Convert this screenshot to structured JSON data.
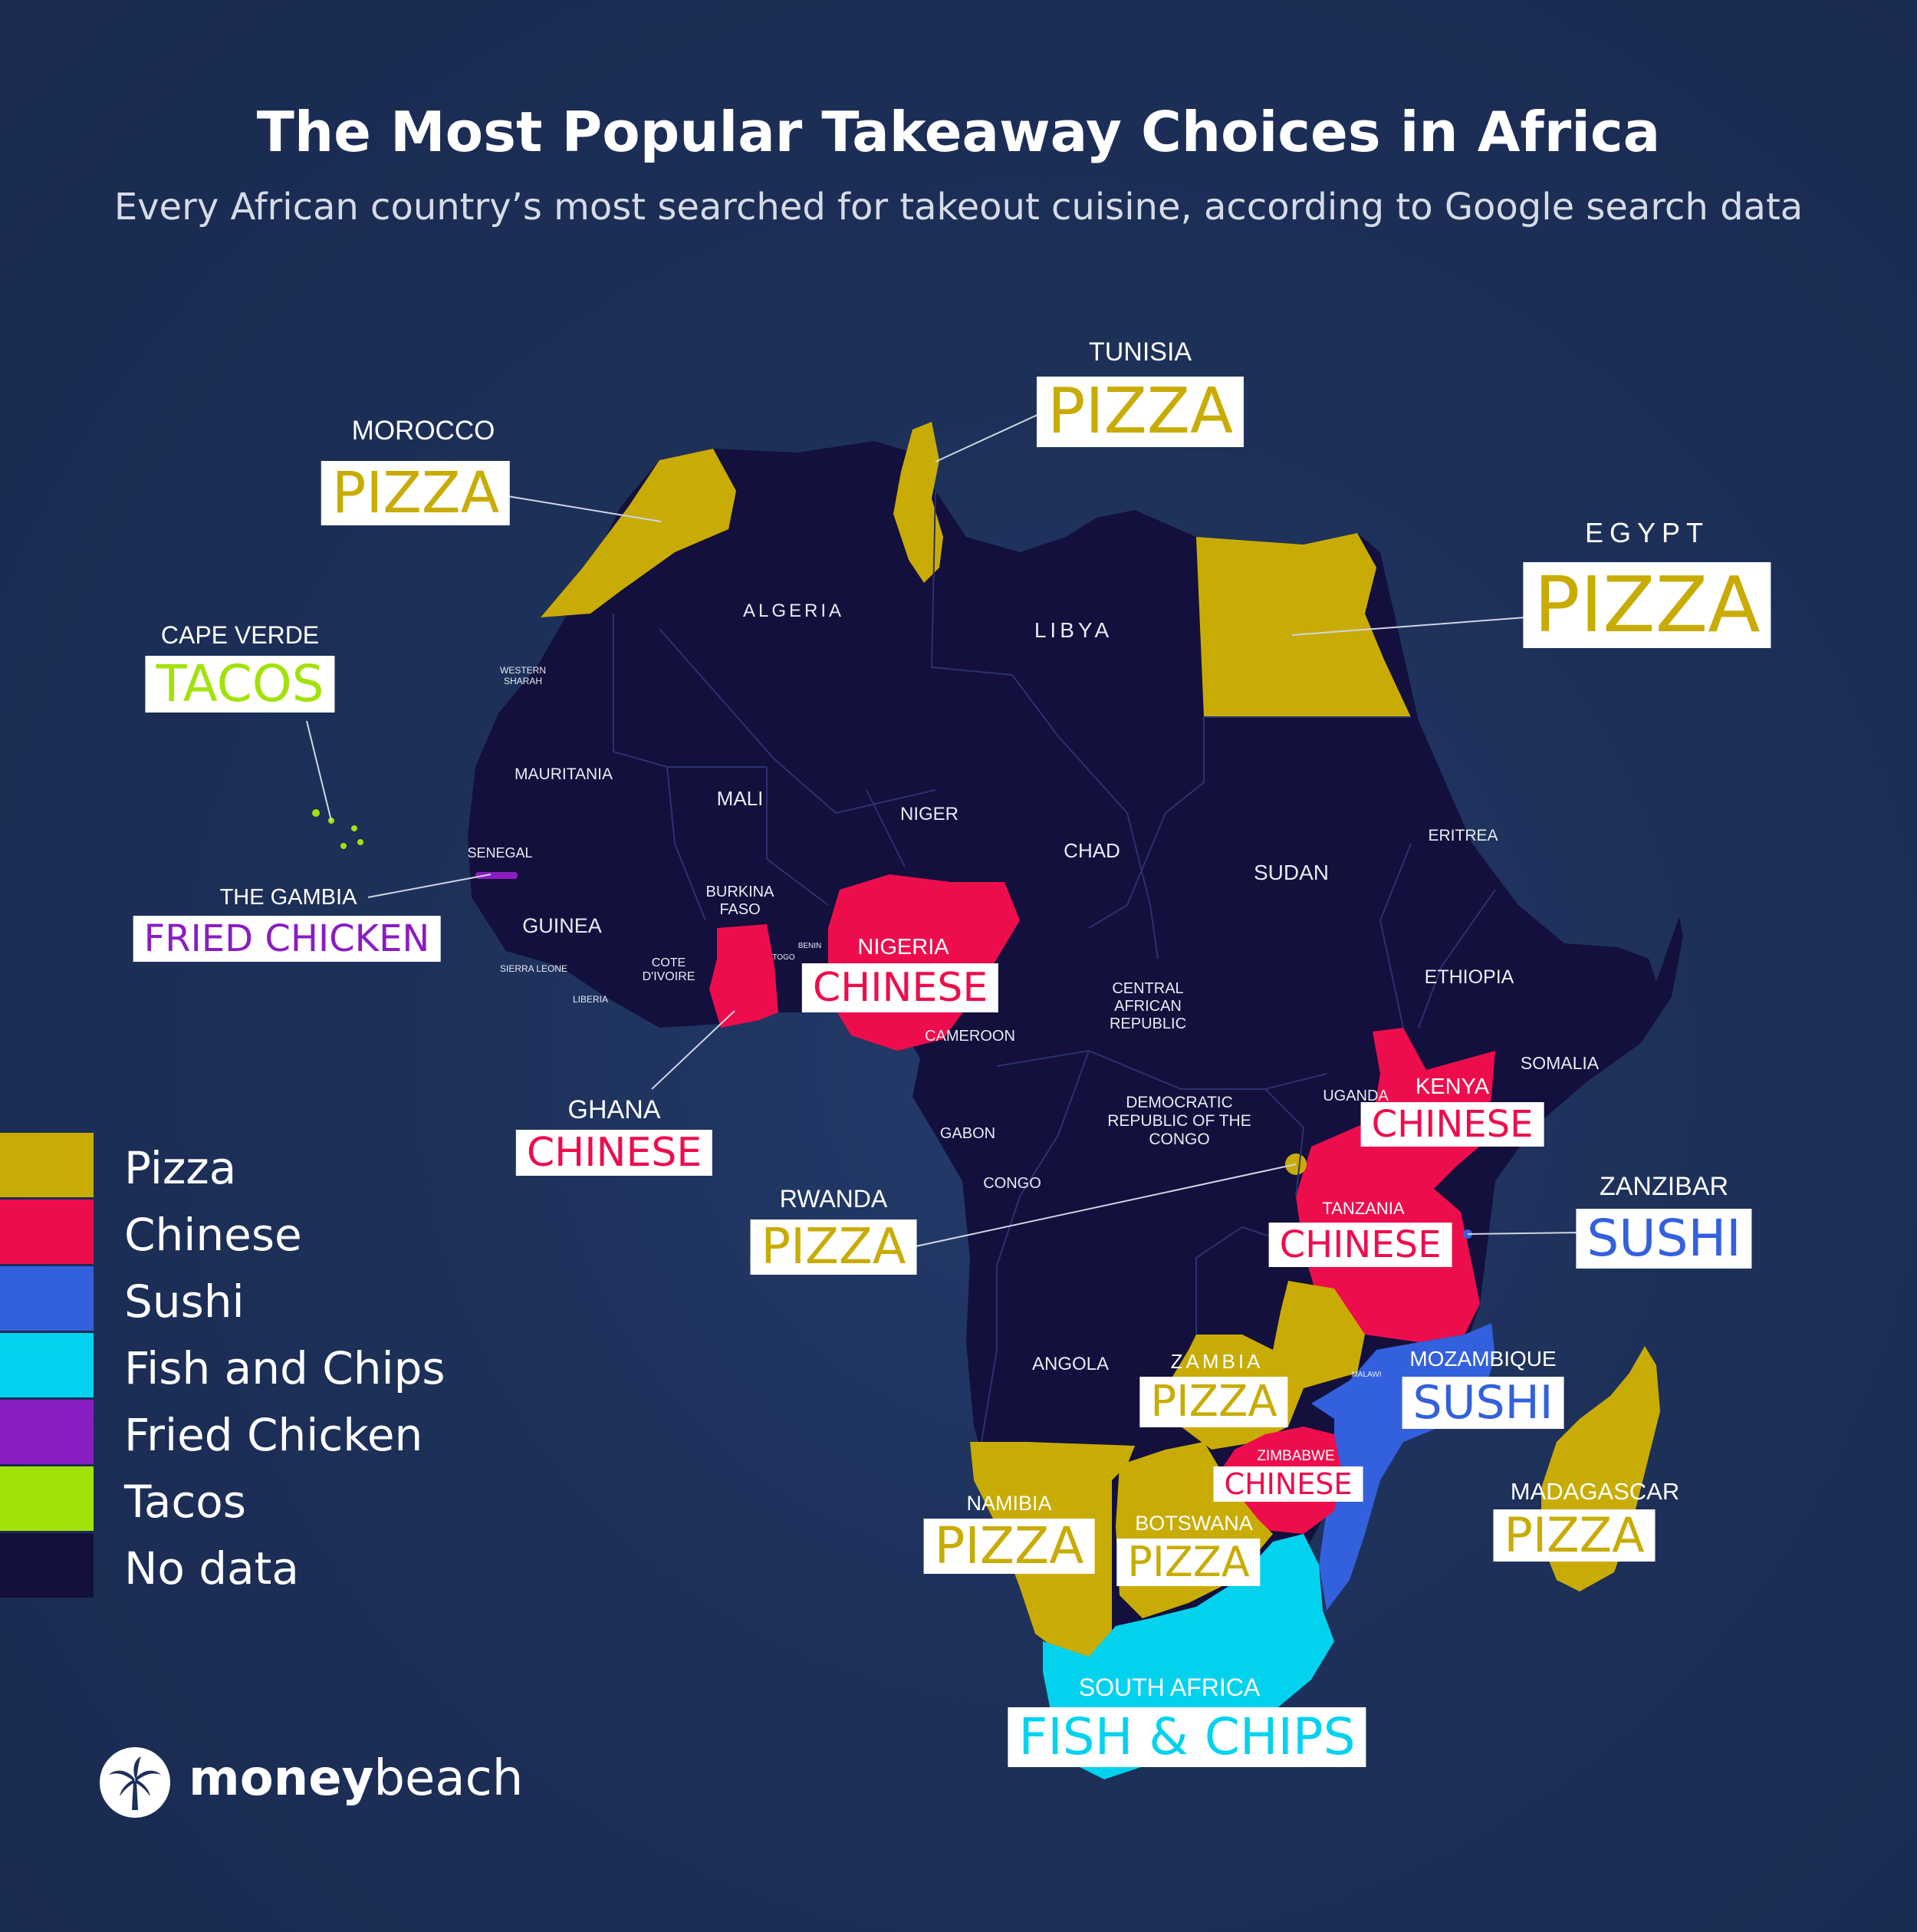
{
  "title": "The Most Popular Takeaway Choices in Africa",
  "subtitle": "Every African country’s most searched for takeout cuisine, according to Google search data",
  "colors": {
    "pizza": "#c8ac05",
    "chinese": "#ee0d4c",
    "sushi": "#3360dd",
    "fish_and_chips": "#03d2ef",
    "fried_chicken": "#8a1dc2",
    "tacos": "#a2e20a",
    "no_data": "#13103d",
    "background": "#1d3059"
  },
  "legend": [
    {
      "label": "Pizza",
      "color": "#c8ac05"
    },
    {
      "label": "Chinese",
      "color": "#ee0d4c"
    },
    {
      "label": "Sushi",
      "color": "#3360dd"
    },
    {
      "label": "Fish and Chips",
      "color": "#03d2ef"
    },
    {
      "label": "Fried Chicken",
      "color": "#8a1dc2"
    },
    {
      "label": "Tacos",
      "color": "#a2e20a"
    },
    {
      "label": "No data",
      "color": "#13103d"
    }
  ],
  "callouts": [
    {
      "country": "TUNISIA",
      "cuisine": "PIZZA",
      "category": "pizza"
    },
    {
      "country": "MOROCCO",
      "cuisine": "PIZZA",
      "category": "pizza"
    },
    {
      "country": "EGYPT",
      "cuisine": "PIZZA",
      "category": "pizza"
    },
    {
      "country": "CAPE VERDE",
      "cuisine": "TACOS",
      "category": "tacos"
    },
    {
      "country": "THE GAMBIA",
      "cuisine": "FRIED CHICKEN",
      "category": "fried_chicken"
    },
    {
      "country": "NIGERIA",
      "cuisine": "CHINESE",
      "category": "chinese"
    },
    {
      "country": "GHANA",
      "cuisine": "CHINESE",
      "category": "chinese"
    },
    {
      "country": "KENYA",
      "cuisine": "CHINESE",
      "category": "chinese"
    },
    {
      "country": "ZANZIBAR",
      "cuisine": "SUSHI",
      "category": "sushi"
    },
    {
      "country": "RWANDA",
      "cuisine": "PIZZA",
      "category": "pizza"
    },
    {
      "country": "TANZANIA",
      "cuisine": "CHINESE",
      "category": "chinese"
    },
    {
      "country": "MOZAMBIQUE",
      "cuisine": "SUSHI",
      "category": "sushi"
    },
    {
      "country": "ZAMBIA",
      "cuisine": "PIZZA",
      "category": "pizza"
    },
    {
      "country": "ZIMBABWE",
      "cuisine": "CHINESE",
      "category": "chinese"
    },
    {
      "country": "MADAGASCAR",
      "cuisine": "PIZZA",
      "category": "pizza"
    },
    {
      "country": "NAMIBIA",
      "cuisine": "PIZZA",
      "category": "pizza"
    },
    {
      "country": "BOTSWANA",
      "cuisine": "PIZZA",
      "category": "pizza"
    },
    {
      "country": "SOUTH AFRICA",
      "cuisine": "FISH & CHIPS",
      "category": "fish_and_chips"
    }
  ],
  "country_labels": [
    "ALGERIA",
    "LIBYA",
    "WESTERN SHARAH",
    "MAURITANIA",
    "MALI",
    "NIGER",
    "CHAD",
    "SUDAN",
    "ERITREA",
    "SENEGAL",
    "GUINEA",
    "BURKINA FASO",
    "BENIN",
    "TOGO",
    "COTE D'IVOIRE",
    "SIERRA LEONE",
    "LIBERIA",
    "ETHIOPIA",
    "CENTRAL AFRICAN REPUBLIC",
    "CAMEROON",
    "SOMALIA",
    "UGANDA",
    "DEMOCRATIC REPUBLIC OF THE CONGO",
    "GABON",
    "CONGO",
    "ANGOLA",
    "MALAWI"
  ],
  "brand": {
    "bold": "money",
    "regular": "beach",
    "icon": "palm-tree-logo-icon"
  }
}
